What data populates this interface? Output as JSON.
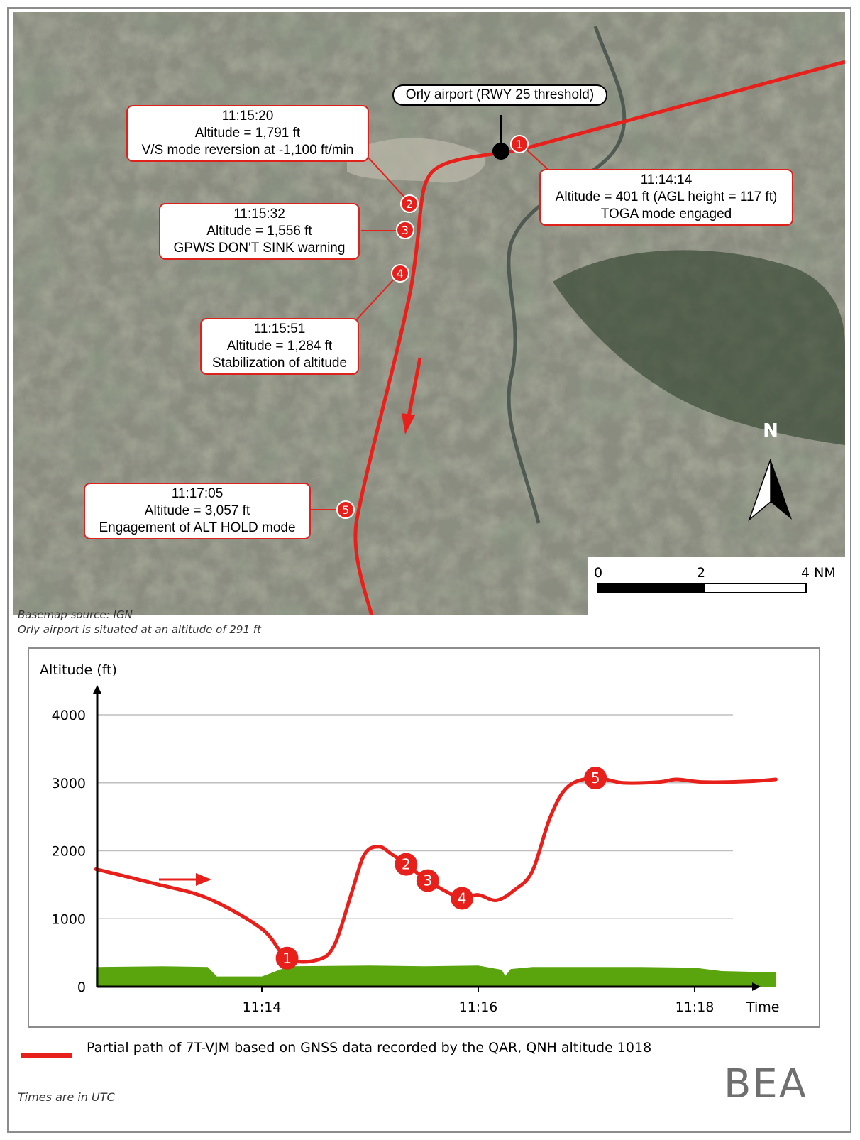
{
  "map": {
    "airport_label": "Orly airport (RWY 25 threshold)",
    "callouts": [
      {
        "id": 1,
        "time": "11:14:14",
        "altitude": "Altitude = 401 ft (AGL height = 117 ft)",
        "event": "TOGA mode engaged"
      },
      {
        "id": 2,
        "time": "11:15:20",
        "altitude": "Altitude = 1,791 ft",
        "event": "V/S mode reversion at -1,100 ft/min"
      },
      {
        "id": 3,
        "time": "11:15:32",
        "altitude": "Altitude = 1,556 ft",
        "event": "GPWS DON'T SINK warning"
      },
      {
        "id": 4,
        "time": "11:15:51",
        "altitude": "Altitude = 1,284 ft",
        "event": "Stabilization of altitude"
      },
      {
        "id": 5,
        "time": "11:17:05",
        "altitude": "Altitude = 3,057 ft",
        "event": "Engagement of ALT HOLD mode"
      }
    ],
    "markers": [
      "1",
      "2",
      "3",
      "4",
      "5"
    ],
    "north_label": "N",
    "scale": {
      "labels": [
        "0",
        "2",
        "4 NM"
      ]
    },
    "path_color": "#e8201b"
  },
  "notes": {
    "basemap": "Basemap source: IGN",
    "airport_altitude": "Orly airport is situated at an altitude of 291 ft"
  },
  "chart_data": {
    "type": "area",
    "ylabel": "Altitude (ft)",
    "xlabel": "Time",
    "y_ticks": [
      "0",
      "1000",
      "2000",
      "3000",
      "4000"
    ],
    "x_ticks": [
      "11:14",
      "11:16",
      "11:18"
    ],
    "ylim": [
      0,
      4000
    ],
    "grid": true,
    "series": [
      {
        "name": "Partial path of 7T-VJM based on GNSS data recorded by the QAR, QNH altitude 1018",
        "color": "#e8201b",
        "points": [
          [
            "11:12:28",
            1730
          ],
          [
            "11:13:00",
            1520
          ],
          [
            "11:13:30",
            1300
          ],
          [
            "11:14:00",
            850
          ],
          [
            "11:14:14",
            420
          ],
          [
            "11:14:30",
            390
          ],
          [
            "11:14:40",
            600
          ],
          [
            "11:14:50",
            1400
          ],
          [
            "11:14:57",
            1950
          ],
          [
            "11:15:05",
            2060
          ],
          [
            "11:15:12",
            1950
          ],
          [
            "11:15:20",
            1800
          ],
          [
            "11:15:32",
            1560
          ],
          [
            "11:15:45",
            1360
          ],
          [
            "11:15:51",
            1300
          ],
          [
            "11:16:00",
            1350
          ],
          [
            "11:16:10",
            1270
          ],
          [
            "11:16:20",
            1420
          ],
          [
            "11:16:30",
            1700
          ],
          [
            "11:16:40",
            2500
          ],
          [
            "11:16:50",
            2950
          ],
          [
            "11:17:05",
            3070
          ],
          [
            "11:17:20",
            3000
          ],
          [
            "11:17:40",
            3010
          ],
          [
            "11:17:50",
            3050
          ],
          [
            "11:18:05",
            3010
          ],
          [
            "11:18:30",
            3020
          ],
          [
            "11:18:45",
            3050
          ]
        ]
      },
      {
        "name": "Terrain",
        "color": "#5aa50d",
        "points": [
          [
            "11:12:28",
            290
          ],
          [
            "11:13:05",
            300
          ],
          [
            "11:13:30",
            290
          ],
          [
            "11:13:35",
            150
          ],
          [
            "11:14:00",
            150
          ],
          [
            "11:14:15",
            300
          ],
          [
            "11:15:00",
            310
          ],
          [
            "11:15:30",
            300
          ],
          [
            "11:16:00",
            310
          ],
          [
            "11:16:13",
            250
          ],
          [
            "11:16:15",
            160
          ],
          [
            "11:16:18",
            260
          ],
          [
            "11:16:30",
            290
          ],
          [
            "11:17:30",
            290
          ],
          [
            "11:18:00",
            280
          ],
          [
            "11:18:15",
            230
          ],
          [
            "11:18:45",
            210
          ]
        ]
      }
    ],
    "markers": [
      {
        "label": "1",
        "time": "11:14:14",
        "altitude": 420
      },
      {
        "label": "2",
        "time": "11:15:20",
        "altitude": 1800
      },
      {
        "label": "3",
        "time": "11:15:32",
        "altitude": 1560
      },
      {
        "label": "4",
        "time": "11:15:51",
        "altitude": 1300
      },
      {
        "label": "5",
        "time": "11:17:05",
        "altitude": 3070
      }
    ]
  },
  "footer": {
    "times_note": "Times are in UTC",
    "logo": "BEA"
  }
}
